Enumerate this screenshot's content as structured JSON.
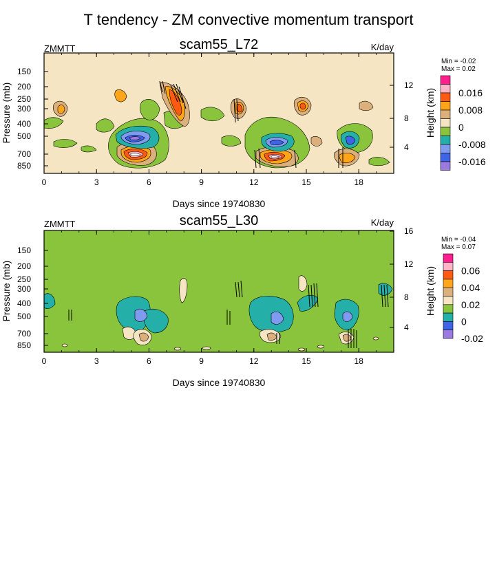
{
  "figure": {
    "title": "T tendency - ZM convective momentum transport"
  },
  "chart_data": [
    {
      "type": "heatmap",
      "title": "scam55_L72",
      "variable": "ZMMTT",
      "units": "K/day",
      "xlabel": "Days since 19740830",
      "ylabel": "Pressure (mb)",
      "ylabel_right": "Height (km)",
      "xlim": [
        0,
        20
      ],
      "x_ticks": [
        "0",
        "3",
        "6",
        "9",
        "12",
        "15",
        "18"
      ],
      "y_ticks": [
        "150",
        "200",
        "250",
        "300",
        "400",
        "500",
        "700",
        "850"
      ],
      "height_ticks": [
        "12",
        "8",
        "4"
      ],
      "min_label": "Min =  -0.02",
      "max_label": "Max =  0.02",
      "colorbar": {
        "labels": [
          "0.016",
          "0.008",
          "0",
          "-0.008",
          "-0.016"
        ],
        "colors": [
          "#ff1f8f",
          "#ffb4c8",
          "#ff5a12",
          "#ffa51a",
          "#dcb07c",
          "#f5e5c2",
          "#8ac43c",
          "#24b0a8",
          "#7f9aef",
          "#3f64e6",
          "#9b7be0"
        ]
      },
      "background_color": "#f5e5c2",
      "features": [
        {
          "day": 5.6,
          "pressure": 520,
          "level": -0.016
        },
        {
          "day": 5.6,
          "pressure": 740,
          "level": 0.016
        },
        {
          "day": 7.6,
          "pressure": 270,
          "level": 0.012
        },
        {
          "day": 11.2,
          "pressure": 300,
          "level": 0.012
        },
        {
          "day": 13.3,
          "pressure": 560,
          "level": -0.012
        },
        {
          "day": 13.3,
          "pressure": 760,
          "level": 0.012
        },
        {
          "day": 14.9,
          "pressure": 290,
          "level": 0.008
        },
        {
          "day": 17.2,
          "pressure": 780,
          "level": 0.008
        },
        {
          "day": 17.8,
          "pressure": 560,
          "level": -0.008
        },
        {
          "day": 0.9,
          "pressure": 300,
          "level": 0.004
        }
      ]
    },
    {
      "type": "heatmap",
      "title": "scam55_L30",
      "variable": "ZMMTT",
      "units": "K/day",
      "xlabel": "Days since 19740830",
      "ylabel": "Pressure (mb)",
      "ylabel_right": "Height (km)",
      "xlim": [
        0,
        20
      ],
      "x_ticks": [
        "0",
        "3",
        "6",
        "9",
        "12",
        "15",
        "18"
      ],
      "y_ticks": [
        "150",
        "200",
        "250",
        "300",
        "400",
        "500",
        "700",
        "850"
      ],
      "height_ticks": [
        "16",
        "12",
        "8",
        "4"
      ],
      "min_label": "Min =  -0.04",
      "max_label": "Max =  0.07",
      "colorbar": {
        "labels": [
          "0.06",
          "0.04",
          "0.02",
          "0",
          "-0.02"
        ],
        "colors": [
          "#ff1f8f",
          "#ffb4c8",
          "#ff5a12",
          "#ffa51a",
          "#dcb07c",
          "#f5e5c2",
          "#8ac43c",
          "#24b0a8",
          "#3f64e6",
          "#9b7be0"
        ]
      },
      "background_color": "#8ac43c",
      "features": [
        {
          "day": 5.2,
          "pressure": 480,
          "level": -0.02
        },
        {
          "day": 5.4,
          "pressure": 720,
          "level": 0.02
        },
        {
          "day": 13.2,
          "pressure": 500,
          "level": -0.02
        },
        {
          "day": 13.3,
          "pressure": 740,
          "level": 0.02
        },
        {
          "day": 17.3,
          "pressure": 500,
          "level": -0.02
        },
        {
          "day": 17.2,
          "pressure": 760,
          "level": 0.02
        },
        {
          "day": 15.0,
          "pressure": 310,
          "level": 0.02
        }
      ]
    }
  ]
}
